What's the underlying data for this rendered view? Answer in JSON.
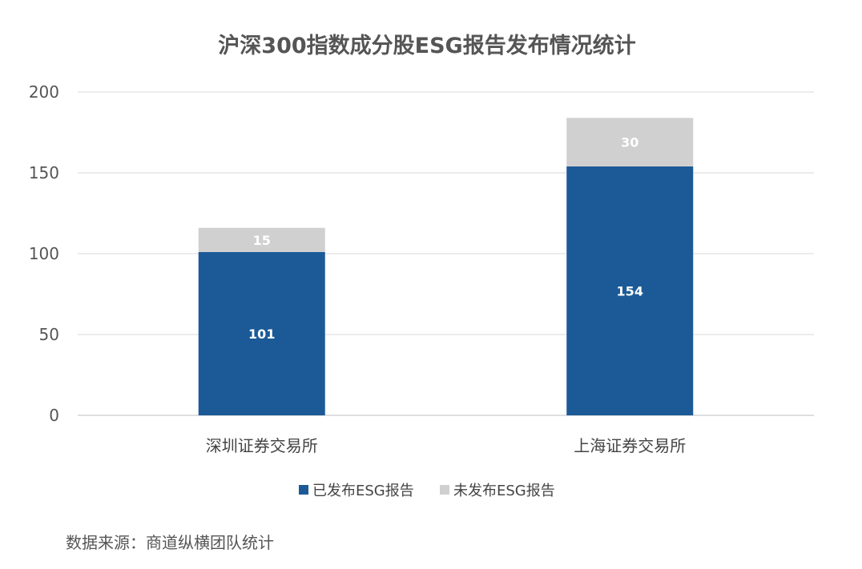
{
  "chart_data": {
    "type": "bar",
    "stacked": true,
    "title": "沪深300指数成分股ESG报告发布情况统计",
    "categories": [
      "深圳证券交易所",
      "上海证券交易所"
    ],
    "series": [
      {
        "name": "已发布ESG报告",
        "values": [
          101,
          154
        ],
        "color": "#1b5a97"
      },
      {
        "name": "未发布ESG报告",
        "values": [
          15,
          30
        ],
        "color": "#d0d0d0"
      }
    ],
    "yticks": [
      "0",
      "50",
      "100",
      "150",
      "200"
    ],
    "ylim": [
      0,
      200
    ],
    "grid": true,
    "legend_position": "bottom"
  },
  "source": "数据来源：商道纵横团队统计"
}
